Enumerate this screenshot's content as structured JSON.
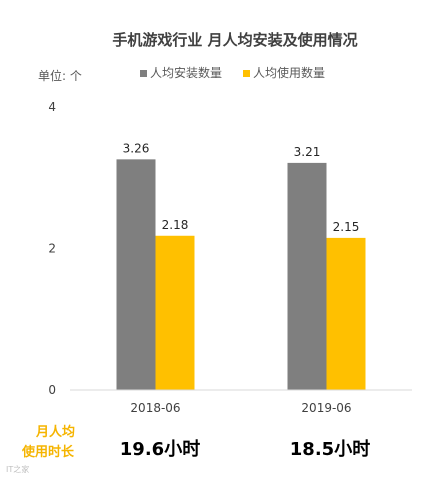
{
  "chart_data": {
    "type": "bar",
    "title": "手机游戏行业 月人均安装及使用情况",
    "unit_label": "单位: 个",
    "categories": [
      "2018-06",
      "2019-06"
    ],
    "series": [
      {
        "name": "人均安装数量",
        "values": [
          3.26,
          3.21
        ],
        "color": "#7f7f7f"
      },
      {
        "name": "人均使用数量",
        "values": [
          2.18,
          2.15
        ],
        "color": "#ffc000"
      }
    ],
    "y_ticks": [
      0,
      2,
      4
    ],
    "ylim": [
      0,
      4
    ],
    "grid": false,
    "legend": "top-center"
  },
  "footer": {
    "label_line1": "月人均",
    "label_line2": "使用时长",
    "values": [
      "19.6小时",
      "18.5小时"
    ]
  },
  "watermark": "IT之家"
}
